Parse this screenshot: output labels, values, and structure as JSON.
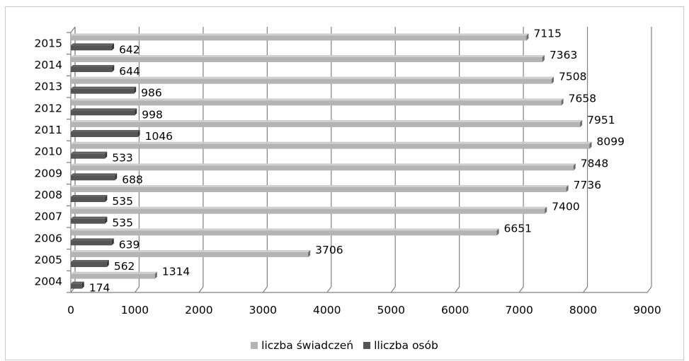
{
  "chart_data": {
    "type": "bar",
    "orientation": "horizontal",
    "style": "3d",
    "title": "",
    "xlabel": "",
    "ylabel": "",
    "xlim": [
      0,
      9000
    ],
    "x_ticks": [
      "0",
      "1000",
      "2000",
      "3000",
      "4000",
      "5000",
      "6000",
      "7000",
      "8000",
      "9000"
    ],
    "grid": true,
    "legend_position": "bottom",
    "categories": [
      "2004",
      "2005",
      "2006",
      "2007",
      "2008",
      "2009",
      "2010",
      "2011",
      "2012",
      "2013",
      "2014",
      "2015"
    ],
    "series": [
      {
        "name": "liczba świadczeń",
        "color": "#b4b4b4",
        "values": [
          1314,
          3706,
          6651,
          7400,
          7736,
          7848,
          8099,
          7951,
          7658,
          7508,
          7363,
          7115
        ]
      },
      {
        "name": "lliczba osób",
        "color": "#555555",
        "values": [
          174,
          562,
          639,
          535,
          535,
          688,
          533,
          1046,
          998,
          986,
          644,
          642
        ]
      }
    ]
  }
}
